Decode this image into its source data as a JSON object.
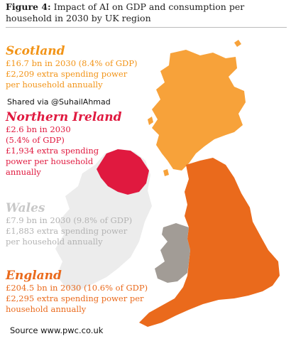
{
  "figure": {
    "label": "Figure 4:",
    "title": "Impact of AI on GDP and consumption per household in 2030 by UK region"
  },
  "watermark": "Shared via @SuhailAhmad",
  "source": "Source www.pwc.co.uk",
  "regions": [
    {
      "id": "scotland",
      "name": "Scotland",
      "color": "#f7a23a",
      "lines": [
        "£16.7 bn in 2030 (8.4% of GDP)",
        "£2,209 extra spending power",
        "per household annually"
      ]
    },
    {
      "id": "northern-ireland",
      "name": "Northern Ireland",
      "color": "#e0193f",
      "lines": [
        "£2.6 bn in 2030",
        "(5.4% of GDP)",
        "£1,934 extra spending",
        "power per household",
        "annually"
      ]
    },
    {
      "id": "wales",
      "name": "Wales",
      "color": "#a29c96",
      "lines": [
        "£7.9 bn in 2030 (9.8% of GDP)",
        "£1,883 extra spending power",
        "per household annually"
      ]
    },
    {
      "id": "england",
      "name": "England",
      "color": "#ea6a1c",
      "lines": [
        "£204.5 bn in 2030 (10.6% of GDP)",
        "£2,295 extra spending power per",
        "household annually"
      ]
    }
  ],
  "ireland_color": "#ececec"
}
